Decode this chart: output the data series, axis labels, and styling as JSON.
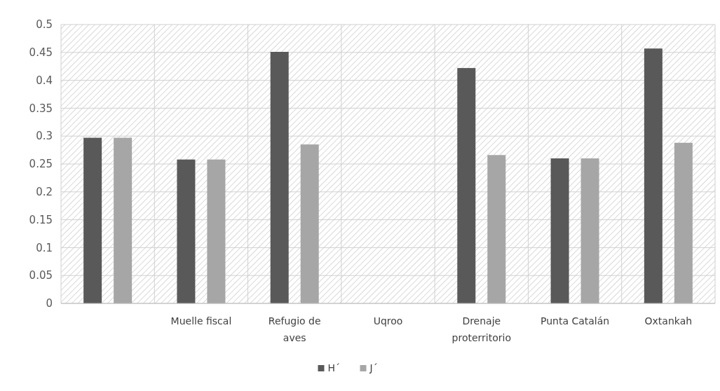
{
  "chart_data": {
    "type": "bar",
    "categories": [
      null,
      "Muelle fiscal",
      "Refugio de aves",
      "Uqroo",
      "Drenaje proterritorio",
      "Punta Catalán",
      "Oxtankah"
    ],
    "series": [
      {
        "name": "H´",
        "color": "#595959",
        "values": [
          0.297,
          0.258,
          0.451,
          0,
          0.422,
          0.26,
          0.457
        ]
      },
      {
        "name": "J´",
        "color": "#a6a6a6",
        "values": [
          0.297,
          0.258,
          0.285,
          0,
          0.266,
          0.26,
          0.288
        ]
      }
    ],
    "ylim": [
      0,
      0.5
    ],
    "yticks": [
      0,
      0.05,
      0.1,
      0.15,
      0.2,
      0.25,
      0.3,
      0.35,
      0.4,
      0.45,
      0.5
    ],
    "grid": true,
    "legend": "bottom"
  }
}
